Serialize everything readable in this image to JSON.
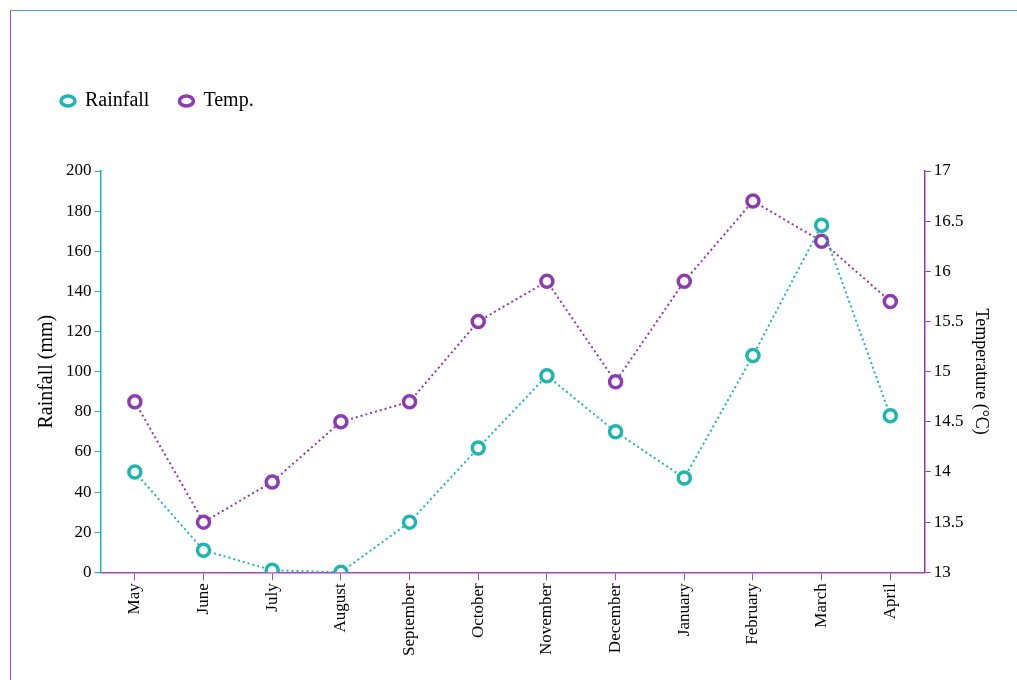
{
  "chart_data": {
    "type": "line",
    "categories": [
      "May",
      "June",
      "July",
      "August",
      "September",
      "October",
      "November",
      "December",
      "January",
      "February",
      "March",
      "April"
    ],
    "series": [
      {
        "name": "Rainfall",
        "color": "#1fb5b0",
        "values": [
          50,
          11,
          1,
          0,
          25,
          62,
          98,
          70,
          47,
          108,
          173,
          78
        ]
      },
      {
        "name": "Temp.",
        "color": "#8e3ab0",
        "axis": "y2",
        "values": [
          14.7,
          13.5,
          13.9,
          14.5,
          14.7,
          15.5,
          15.9,
          14.9,
          15.9,
          16.7,
          16.3,
          15.7
        ]
      }
    ],
    "ylabel": "Rainfall (mm)",
    "y2label": "Temperature (°C)",
    "ylim": [
      0,
      200
    ],
    "yticks": [
      0,
      20,
      40,
      60,
      80,
      100,
      120,
      140,
      160,
      180,
      200
    ],
    "y2lim": [
      13,
      17
    ],
    "y2ticks": [
      13,
      13.5,
      14,
      14.5,
      15,
      15.5,
      16,
      16.5,
      17
    ],
    "grid": false,
    "legend": "top left",
    "marker": "circle",
    "line_style": "dotted"
  }
}
